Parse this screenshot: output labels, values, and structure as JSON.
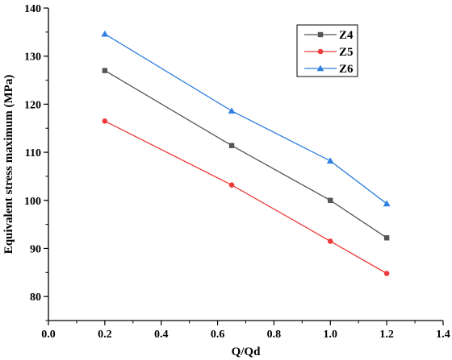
{
  "chart_data": {
    "type": "line",
    "xlabel": "Q/Qd",
    "ylabel": "Equivalent stress maximum (MPa)",
    "xlim": [
      0.0,
      1.4
    ],
    "ylim": [
      75,
      140
    ],
    "xticks": [
      0.0,
      0.2,
      0.4,
      0.6,
      0.8,
      1.0,
      1.2,
      1.4
    ],
    "xtick_labels": [
      "0.0",
      "0.2",
      "0.4",
      "0.6",
      "0.8",
      "1.0",
      "1.2",
      "1.4"
    ],
    "yticks": [
      80,
      90,
      100,
      110,
      120,
      130,
      140
    ],
    "ytick_labels": [
      "80",
      "90",
      "100",
      "110",
      "120",
      "130",
      "140"
    ],
    "grid": false,
    "legend_position": "top-right",
    "x": [
      0.2,
      0.65,
      1.0,
      1.2
    ],
    "series": [
      {
        "name": "Z4",
        "color": "#555555",
        "marker": "square",
        "values": [
          127.0,
          111.4,
          100.0,
          92.2
        ]
      },
      {
        "name": "Z5",
        "color": "#ef3b3b",
        "marker": "circle",
        "values": [
          116.5,
          103.2,
          91.5,
          84.8
        ]
      },
      {
        "name": "Z6",
        "color": "#2f7fe0",
        "marker": "triangle",
        "values": [
          134.6,
          118.6,
          108.2,
          99.3
        ]
      }
    ]
  }
}
